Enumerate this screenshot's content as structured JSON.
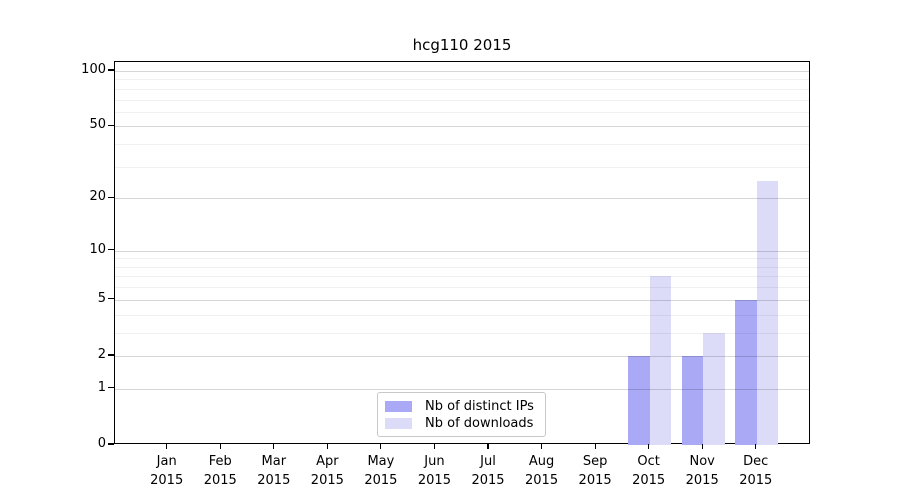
{
  "chart_data": {
    "type": "bar",
    "title": "hcg110 2015",
    "categories": [
      "Jan 2015",
      "Feb 2015",
      "Mar 2015",
      "Apr 2015",
      "May 2015",
      "Jun 2015",
      "Jul 2015",
      "Aug 2015",
      "Sep 2015",
      "Oct 2015",
      "Nov 2015",
      "Dec 2015"
    ],
    "series": [
      {
        "name": "Nb of distinct IPs",
        "color": "#a9a9f6",
        "values": [
          0,
          0,
          0,
          0,
          0,
          0,
          0,
          0,
          0,
          2,
          2,
          5
        ]
      },
      {
        "name": "Nb of downloads",
        "color": "#dcdcf9",
        "values": [
          0,
          0,
          0,
          0,
          0,
          0,
          0,
          0,
          0,
          7,
          3,
          25
        ]
      }
    ],
    "xlabel": "",
    "ylabel": "",
    "y_axis": {
      "scale": "log10(1+value)",
      "tick_labels": [
        0,
        1,
        2,
        5,
        10,
        20,
        50,
        100
      ],
      "major_gridlines": [
        1,
        2,
        5,
        10,
        20,
        50,
        100
      ],
      "minor_gridlines": [
        3,
        4,
        6,
        7,
        8,
        9,
        30,
        40,
        60,
        70,
        80,
        90
      ],
      "ylim": [
        0,
        112
      ]
    },
    "grid": true,
    "legend_position": "inside-bottom-center",
    "colors": {
      "bar_distinct_ips": "#a9a9f6",
      "bar_downloads": "#dcdcf9",
      "frame": "#000000",
      "major_grid": "#d9d9d9",
      "minor_grid": "#f1f1f1",
      "background": "#ffffff",
      "text": "#000000"
    }
  }
}
